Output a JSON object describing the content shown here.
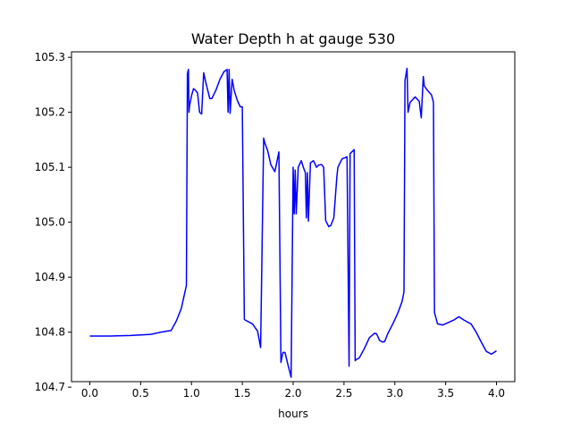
{
  "chart_data": {
    "type": "line",
    "title": "Water Depth h at gauge 530",
    "xlabel": "hours",
    "ylabel": "",
    "xlim": [
      -0.18,
      4.18
    ],
    "ylim": [
      104.71,
      105.31
    ],
    "xticks": [
      0.0,
      0.5,
      1.0,
      1.5,
      2.0,
      2.5,
      3.0,
      3.5,
      4.0
    ],
    "xtick_labels": [
      "0.0",
      "0.5",
      "1.0",
      "1.5",
      "2.0",
      "2.5",
      "3.0",
      "3.5",
      "4.0"
    ],
    "yticks": [
      104.7,
      104.8,
      104.9,
      105.0,
      105.1,
      105.2,
      105.3
    ],
    "ytick_labels": [
      "104.7",
      "104.8",
      "104.9",
      "105.0",
      "105.1",
      "105.2",
      "105.3"
    ],
    "grid": false,
    "legend": "none",
    "series": [
      {
        "color": "#0000ff",
        "x": [
          0.0,
          0.2,
          0.4,
          0.6,
          0.7,
          0.8,
          0.85,
          0.9,
          0.95,
          0.96,
          0.97,
          0.975,
          0.98,
          1.0,
          1.02,
          1.04,
          1.06,
          1.08,
          1.1,
          1.12,
          1.14,
          1.16,
          1.18,
          1.2,
          1.24,
          1.28,
          1.32,
          1.35,
          1.36,
          1.37,
          1.38,
          1.4,
          1.42,
          1.45,
          1.48,
          1.5,
          1.52,
          1.53,
          1.6,
          1.65,
          1.68,
          1.71,
          1.72,
          1.75,
          1.78,
          1.82,
          1.86,
          1.88,
          1.89,
          1.9,
          1.92,
          1.95,
          1.98,
          2.0,
          2.01,
          2.02,
          2.03,
          2.05,
          2.08,
          2.1,
          2.12,
          2.13,
          2.14,
          2.15,
          2.17,
          2.2,
          2.23,
          2.25,
          2.28,
          2.3,
          2.32,
          2.35,
          2.37,
          2.4,
          2.43,
          2.44,
          2.48,
          2.53,
          2.55,
          2.56,
          2.6,
          2.61,
          2.62,
          2.65,
          2.7,
          2.75,
          2.8,
          2.82,
          2.85,
          2.88,
          2.9,
          2.93,
          2.98,
          3.03,
          3.07,
          3.09,
          3.1,
          3.12,
          3.13,
          3.15,
          3.2,
          3.24,
          3.26,
          3.28,
          3.29,
          3.32,
          3.36,
          3.38,
          3.39,
          3.42,
          3.47,
          3.52,
          3.58,
          3.63,
          3.68,
          3.75,
          3.8,
          3.85,
          3.9,
          3.95,
          4.0
        ],
        "y": [
          104.793,
          104.793,
          104.794,
          104.796,
          104.8,
          104.803,
          104.82,
          104.843,
          104.885,
          105.27,
          105.278,
          105.2,
          105.21,
          105.23,
          105.243,
          105.24,
          105.235,
          105.2,
          105.197,
          105.272,
          105.255,
          105.24,
          105.225,
          105.225,
          105.24,
          105.26,
          105.274,
          105.278,
          105.2,
          105.278,
          105.198,
          105.26,
          105.24,
          105.222,
          105.21,
          105.21,
          104.823,
          104.822,
          104.815,
          104.802,
          104.772,
          105.153,
          105.145,
          105.13,
          105.105,
          105.092,
          105.128,
          104.745,
          104.755,
          104.763,
          104.763,
          104.74,
          104.718,
          105.1,
          105.015,
          105.095,
          105.015,
          105.1,
          105.112,
          105.1,
          105.09,
          105.008,
          105.09,
          105.002,
          105.108,
          105.112,
          105.1,
          105.104,
          105.105,
          105.1,
          105.003,
          104.992,
          104.994,
          105.008,
          105.083,
          105.1,
          105.115,
          105.119,
          104.738,
          105.125,
          105.132,
          104.748,
          104.75,
          104.753,
          104.77,
          104.79,
          104.798,
          104.797,
          104.785,
          104.782,
          104.783,
          104.797,
          104.815,
          104.835,
          104.855,
          104.873,
          105.258,
          105.28,
          105.2,
          105.218,
          105.228,
          105.22,
          105.19,
          105.265,
          105.248,
          105.24,
          105.232,
          105.218,
          104.836,
          104.815,
          104.813,
          104.817,
          104.822,
          104.828,
          104.822,
          104.815,
          104.8,
          104.782,
          104.765,
          104.76,
          104.766
        ]
      }
    ]
  }
}
